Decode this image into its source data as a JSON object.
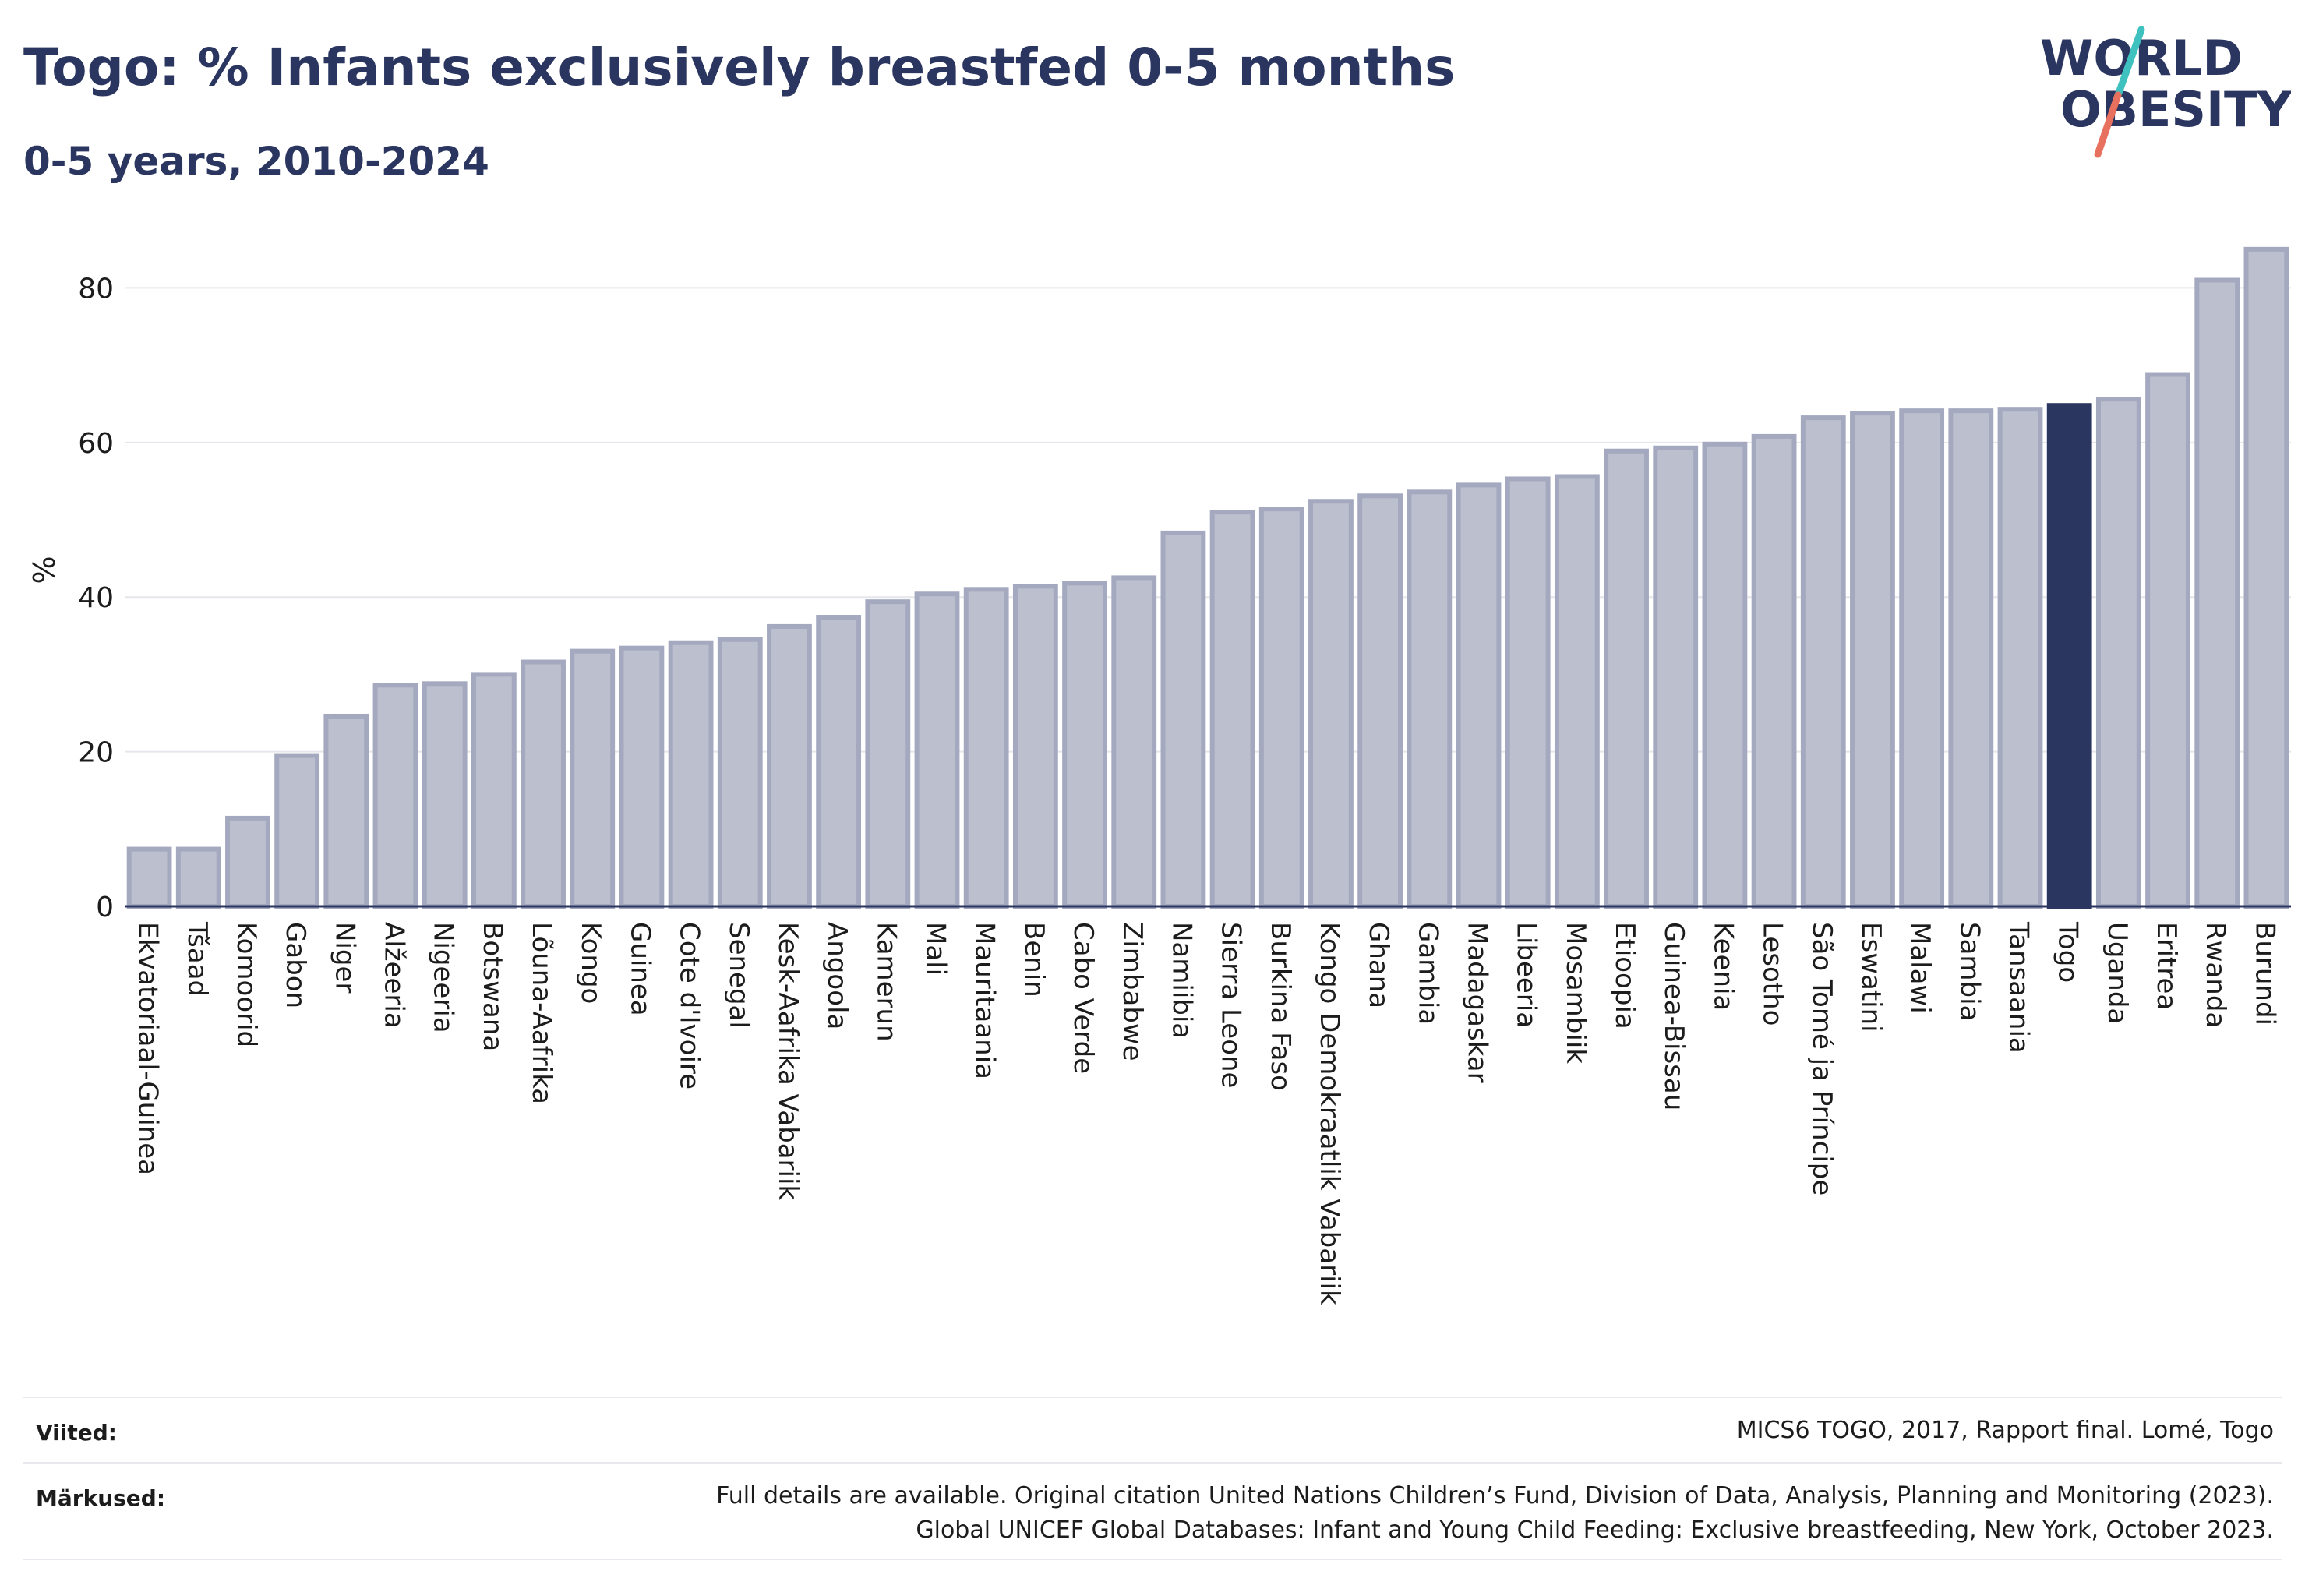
{
  "header": {
    "title": "Togo: % Infants exclusively breastfed 0-5 months",
    "subtitle": "0-5 years, 2010-2024"
  },
  "logo": {
    "line1": "WORLD",
    "line2": "OBESITY"
  },
  "colors": {
    "bar": "#bcbfce",
    "bar_edge": "#a4a9bf",
    "highlight": "#2b3660",
    "text": "#2b3660",
    "logo_slash_teal": "#3fc1c0",
    "logo_slash_red": "#e8705e"
  },
  "chart_data": {
    "type": "bar",
    "ylabel": "%",
    "ylim": [
      0,
      87
    ],
    "yticks": [
      0,
      20,
      40,
      60,
      80
    ],
    "grid": true,
    "highlight": "Togo",
    "categories": [
      "Ekvatoriaal-Guinea",
      "Tšaad",
      "Komoorid",
      "Gabon",
      "Niger",
      "Alžeeria",
      "Nigeeria",
      "Botswana",
      "Lõuna-Aafrika",
      "Kongo",
      "Guinea",
      "Cote d'Ivoire",
      "Senegal",
      "Kesk-Aafrika Vabariik",
      "Angoola",
      "Kamerun",
      "Mali",
      "Mauritaania",
      "Benin",
      "Cabo Verde",
      "Zimbabwe",
      "Namiibia",
      "Sierra Leone",
      "Burkina Faso",
      "Kongo Demokraatlik Vabariik",
      "Ghana",
      "Gambia",
      "Madagaskar",
      "Libeeria",
      "Mosambiik",
      "Etioopia",
      "Guinea-Bissau",
      "Keenia",
      "Lesotho",
      "São Tomé ja Príncipe",
      "Eswatini",
      "Malawi",
      "Sambia",
      "Tansaania",
      "Togo",
      "Uganda",
      "Eritrea",
      "Rwanda",
      "Burundi"
    ],
    "values": [
      7.4,
      7.4,
      11.4,
      19.5,
      24.6,
      28.6,
      28.8,
      30.0,
      31.6,
      33.0,
      33.4,
      34.1,
      34.5,
      36.2,
      37.4,
      39.4,
      40.4,
      41.0,
      41.4,
      41.8,
      42.5,
      48.3,
      51.0,
      51.4,
      52.4,
      53.1,
      53.6,
      54.5,
      55.3,
      55.6,
      58.9,
      59.3,
      59.8,
      60.8,
      63.2,
      63.8,
      64.1,
      64.1,
      64.3,
      64.8,
      65.6,
      68.8,
      81.0,
      85.0
    ]
  },
  "footer": {
    "sources_label": "Viited:",
    "sources_text": "MICS6 TOGO, 2017, Rapport final. Lomé, Togo",
    "notes_label": "Märkused:",
    "notes_line1": "Full details are available. Original citation United Nations Children’s Fund, Division of Data, Analysis, Planning and Monitoring (2023).",
    "notes_line2": "Global UNICEF Global Databases: Infant and Young Child Feeding: Exclusive breastfeeding, New York, October 2023."
  }
}
